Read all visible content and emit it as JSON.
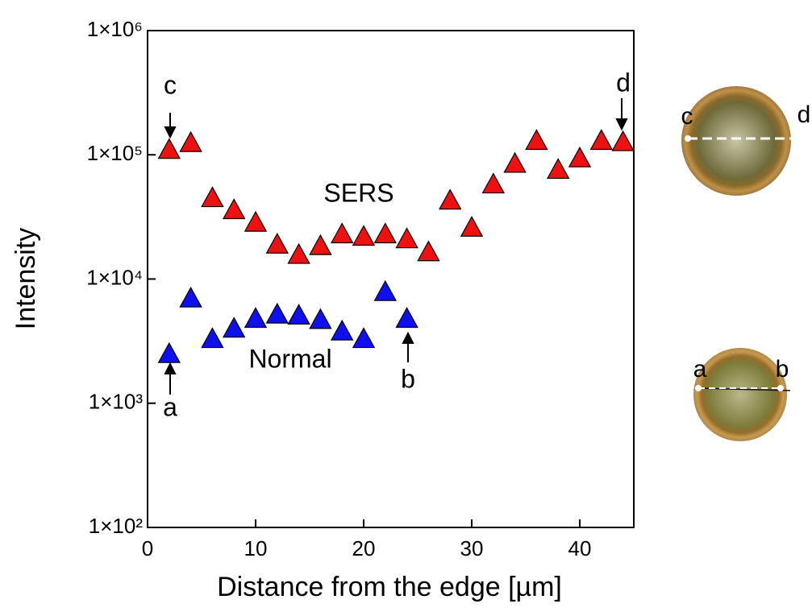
{
  "chart_data": {
    "type": "scatter",
    "xlabel": "Distance from the edge [µm]",
    "ylabel": "Intensity",
    "log_y": true,
    "marker": "triangle",
    "xlim": [
      0,
      45
    ],
    "xticks": [
      0,
      10,
      20,
      30,
      40
    ],
    "ylim": [
      100,
      1000000
    ],
    "yticks": [
      {
        "value": 100,
        "label": "1×10²"
      },
      {
        "value": 1000,
        "label": "1×10³"
      },
      {
        "value": 10000,
        "label": "1×10⁴"
      },
      {
        "value": 100000,
        "label": "1×10⁵"
      },
      {
        "value": 1000000,
        "label": "1×10⁶"
      }
    ],
    "series": [
      {
        "name": "SERS",
        "color": "#ee1111",
        "x": [
          2,
          4,
          6,
          8,
          10,
          12,
          14,
          16,
          18,
          20,
          22,
          24,
          26,
          28,
          30,
          32,
          34,
          36,
          38,
          40,
          42,
          44
        ],
        "values": [
          110000,
          125000,
          45000,
          36000,
          28500,
          19000,
          15700,
          18500,
          23000,
          22000,
          23000,
          21000,
          16500,
          43000,
          26000,
          58000,
          85000,
          130000,
          76000,
          94000,
          130000,
          127000
        ]
      },
      {
        "name": "Normal",
        "color": "#1010ee",
        "x": [
          2,
          4,
          6,
          8,
          10,
          12,
          14,
          16,
          18,
          20,
          22,
          24
        ],
        "values": [
          2500,
          7000,
          3300,
          4000,
          4800,
          5200,
          5100,
          4700,
          3800,
          3300,
          7900,
          4800
        ]
      }
    ],
    "annotations": [
      "c",
      "d",
      "a",
      "b"
    ],
    "inset_labels": [
      "c",
      "d",
      "a",
      "b"
    ]
  }
}
